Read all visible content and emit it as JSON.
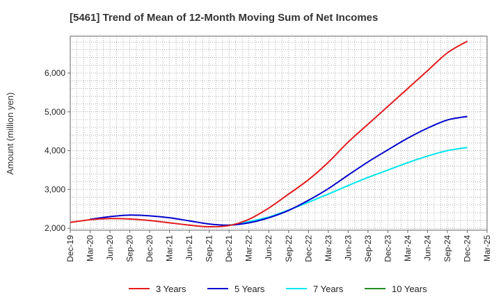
{
  "chart_data": {
    "type": "line",
    "title": "[5461]  Trend of Mean of 12-Month Moving Sum of Net Incomes",
    "ylabel": "Amount (million yen)",
    "xlabel": "",
    "ylim": [
      1950,
      6950
    ],
    "yticks": [
      2000,
      3000,
      4000,
      5000,
      6000
    ],
    "ytick_labels": [
      "2,000",
      "3,000",
      "4,000",
      "5,000",
      "6,000"
    ],
    "xlim": [
      "Dec-19",
      "Mar-25"
    ],
    "xtick_labels": [
      "Dec-19",
      "Mar-20",
      "Jun-20",
      "Sep-20",
      "Dec-20",
      "Mar-21",
      "Jun-21",
      "Sep-21",
      "Dec-21",
      "Mar-22",
      "Jun-22",
      "Sep-22",
      "Dec-22",
      "Mar-23",
      "Jun-23",
      "Sep-23",
      "Dec-23",
      "Mar-24",
      "Jun-24",
      "Sep-24",
      "Dec-24",
      "Mar-25"
    ],
    "grid": true,
    "legend_position": "bottom",
    "series": [
      {
        "name": "3 Years",
        "color": "#e31a1c",
        "x": [
          "Dec-19",
          "Mar-20",
          "Jun-20",
          "Sep-20",
          "Dec-20",
          "Mar-21",
          "Jun-21",
          "Sep-21",
          "Dec-21",
          "Mar-22",
          "Jun-22",
          "Sep-22",
          "Dec-22",
          "Mar-23",
          "Jun-23",
          "Sep-23",
          "Dec-23",
          "Mar-24",
          "Jun-24",
          "Sep-24",
          "Dec-24"
        ],
        "y": [
          2150,
          2220,
          2250,
          2240,
          2200,
          2140,
          2080,
          2040,
          2070,
          2230,
          2520,
          2880,
          3250,
          3700,
          4220,
          4680,
          5140,
          5600,
          6060,
          6520,
          6820
        ]
      },
      {
        "name": "5 Years",
        "color": "#0000cc",
        "x": [
          "Mar-20",
          "Jun-20",
          "Sep-20",
          "Dec-20",
          "Mar-21",
          "Jun-21",
          "Sep-21",
          "Dec-21",
          "Mar-22",
          "Jun-22",
          "Sep-22",
          "Dec-22",
          "Mar-23",
          "Jun-23",
          "Sep-23",
          "Dec-23",
          "Mar-24",
          "Jun-24",
          "Sep-24",
          "Dec-24"
        ],
        "y": [
          2230,
          2300,
          2340,
          2320,
          2270,
          2190,
          2110,
          2080,
          2140,
          2270,
          2460,
          2720,
          3020,
          3370,
          3710,
          4020,
          4320,
          4580,
          4790,
          4880
        ]
      },
      {
        "name": "7 Years",
        "color": "#00e5ee",
        "x": [
          "Dec-21",
          "Mar-22",
          "Jun-22",
          "Sep-22",
          "Dec-22",
          "Mar-23",
          "Jun-23",
          "Sep-23",
          "Dec-23",
          "Mar-24",
          "Jun-24",
          "Sep-24",
          "Dec-24"
        ],
        "y": [
          2080,
          2170,
          2290,
          2470,
          2670,
          2880,
          3100,
          3310,
          3500,
          3690,
          3860,
          4000,
          4080
        ]
      },
      {
        "name": "10 Years",
        "color": "#228b22",
        "x": [],
        "y": []
      }
    ]
  }
}
